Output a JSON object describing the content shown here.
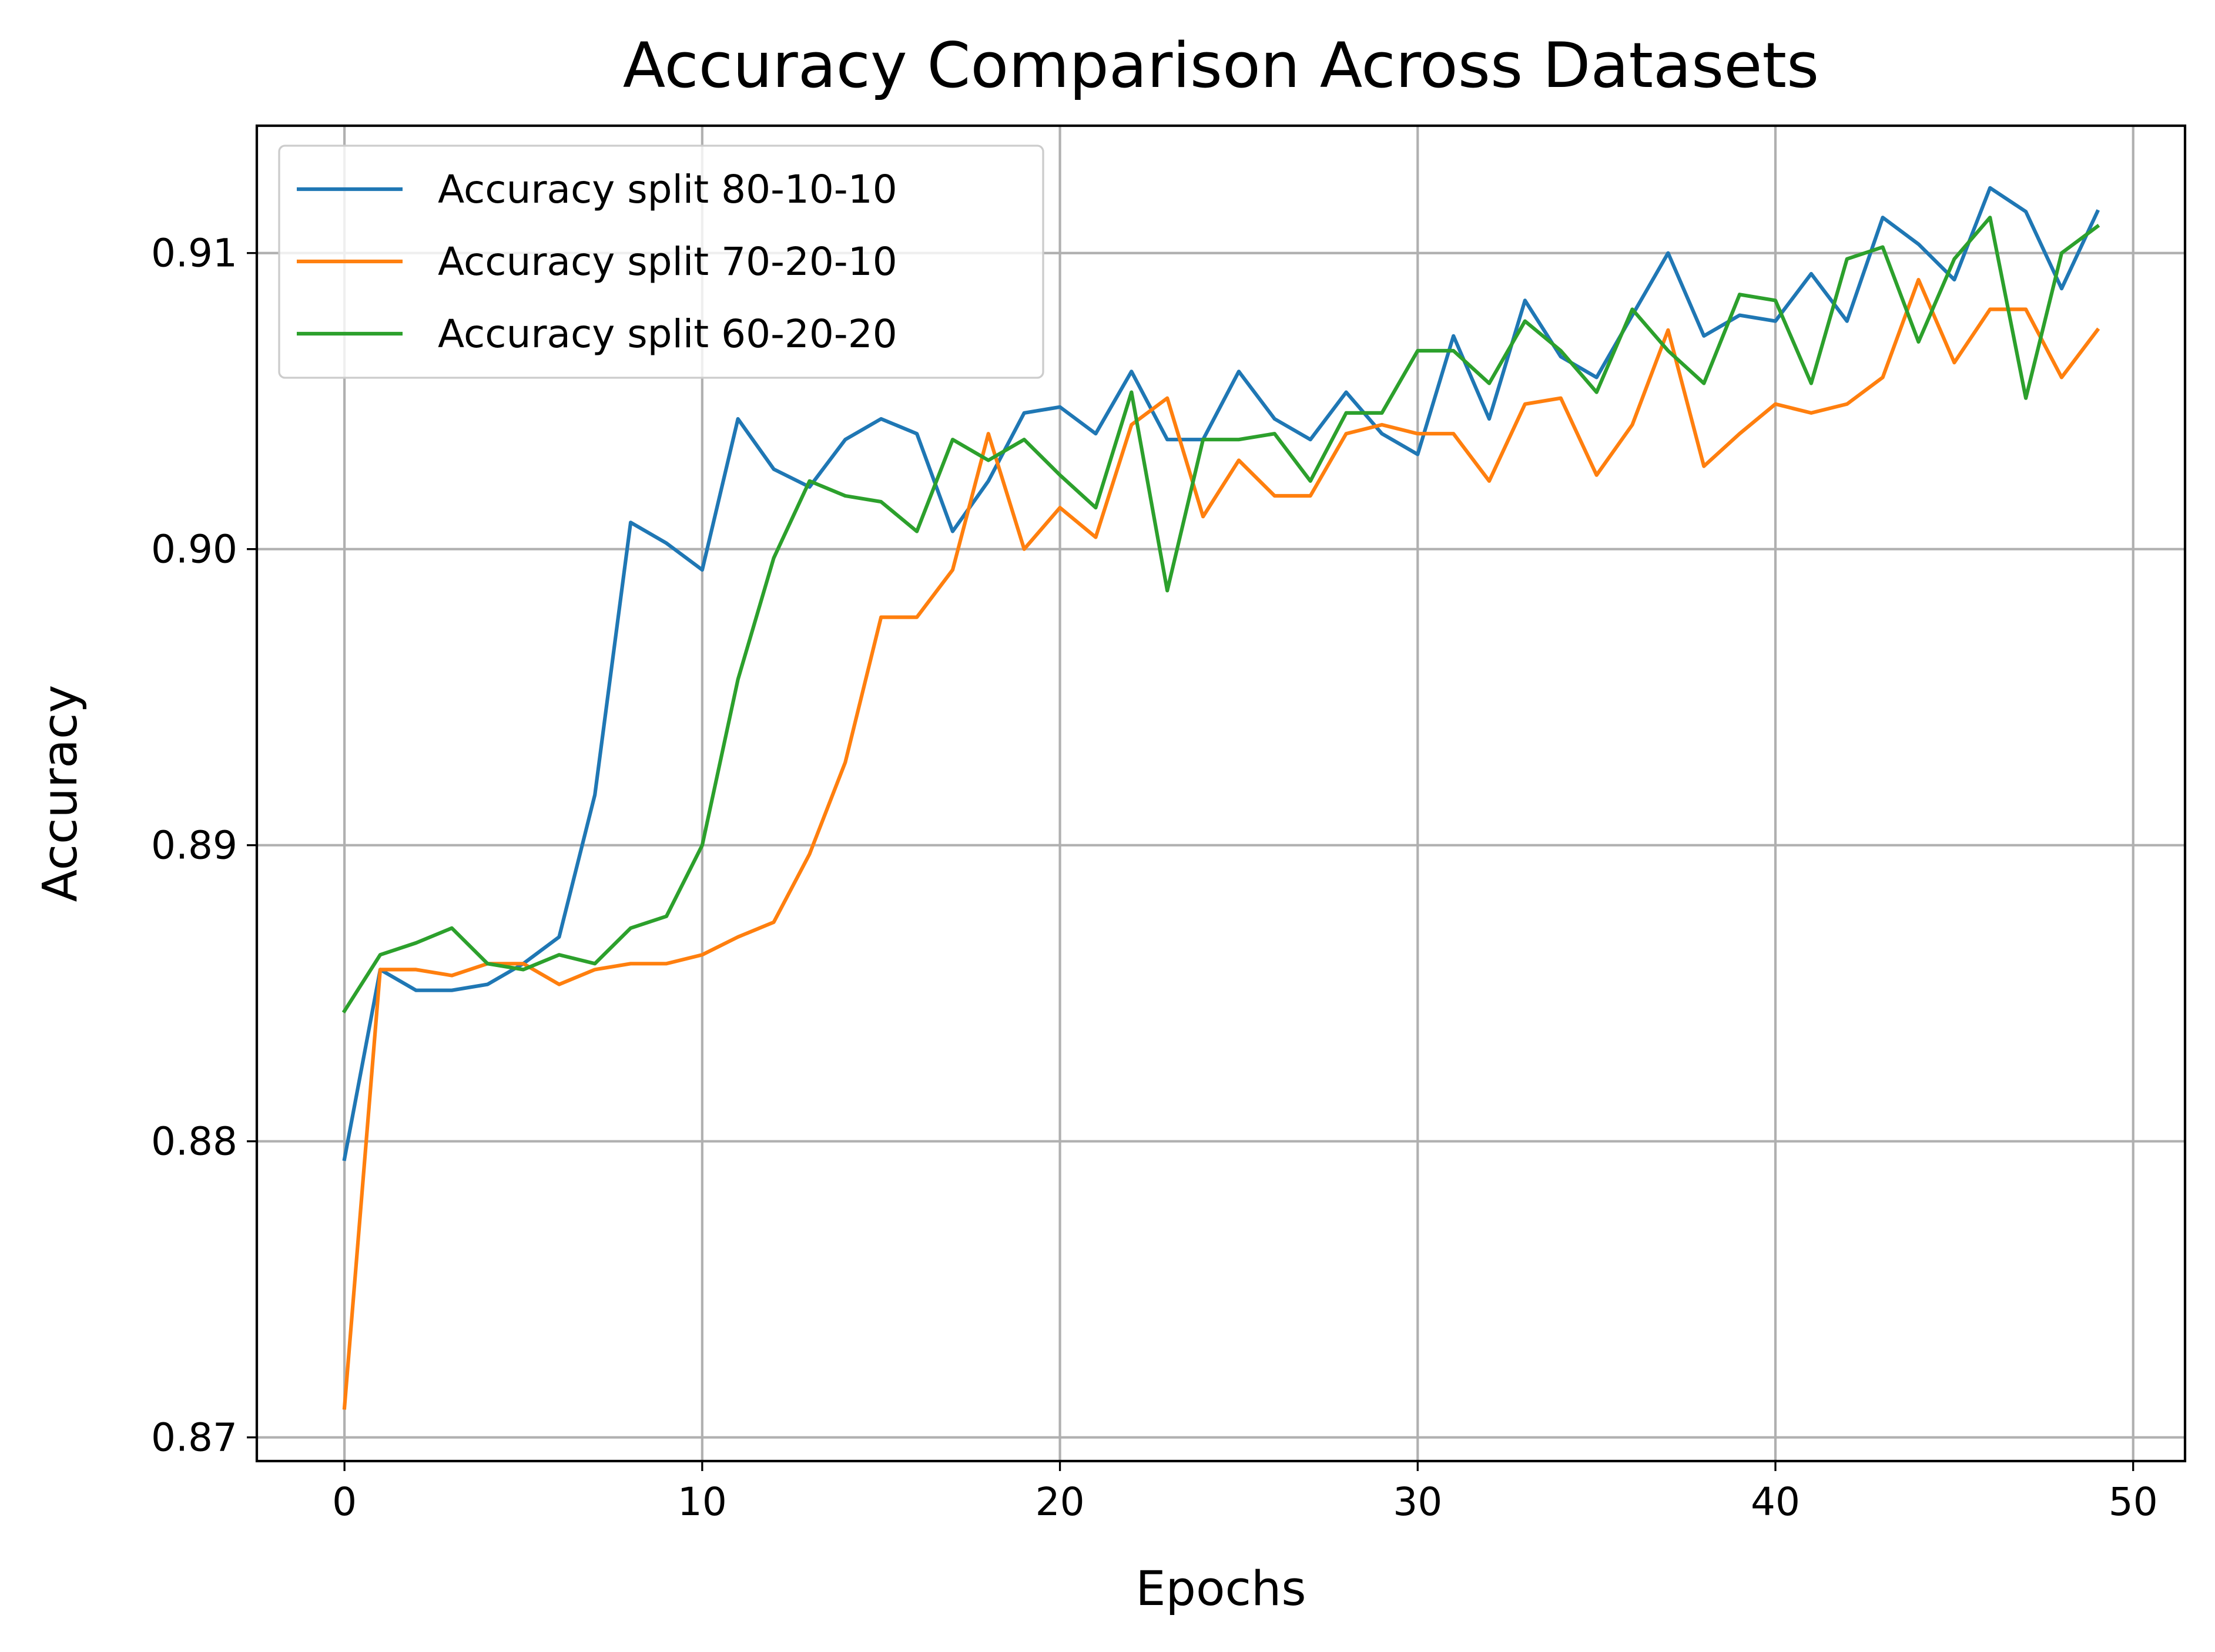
{
  "chart_data": {
    "type": "line",
    "title": "Accuracy Comparison Across Datasets",
    "xlabel": "Epochs",
    "ylabel": "Accuracy",
    "xlim": [
      -2.45,
      51.45
    ],
    "ylim": [
      0.8692,
      0.9143
    ],
    "xticks": [
      0,
      10,
      20,
      30,
      40,
      50
    ],
    "yticks": [
      0.87,
      0.88,
      0.89,
      0.9,
      0.91
    ],
    "ytick_labels": [
      "0.87",
      "0.88",
      "0.89",
      "0.90",
      "0.91"
    ],
    "xtick_labels": [
      "0",
      "10",
      "20",
      "30",
      "40",
      "50"
    ],
    "grid": true,
    "legend_position": "upper-left",
    "x": [
      0,
      1,
      2,
      3,
      4,
      5,
      6,
      7,
      8,
      9,
      10,
      11,
      12,
      13,
      14,
      15,
      16,
      17,
      18,
      19,
      20,
      21,
      22,
      23,
      24,
      25,
      26,
      27,
      28,
      29,
      30,
      31,
      32,
      33,
      34,
      35,
      36,
      37,
      38,
      39,
      40,
      41,
      42,
      43,
      44,
      45,
      46,
      47,
      48,
      49
    ],
    "series": [
      {
        "name": "Accuracy split 80-10-10",
        "color": "#1f77b4",
        "values": [
          0.8794,
          0.8858,
          0.8851,
          0.8851,
          0.8853,
          0.886,
          0.8869,
          0.8917,
          0.9009,
          0.9002,
          0.8993,
          0.9044,
          0.9027,
          0.9021,
          0.9037,
          0.9044,
          0.9039,
          0.9006,
          0.9023,
          0.9046,
          0.9048,
          0.9039,
          0.906,
          0.9037,
          0.9037,
          0.906,
          0.9044,
          0.9037,
          0.9053,
          0.9039,
          0.9032,
          0.9072,
          0.9044,
          0.9084,
          0.9065,
          0.9058,
          0.9079,
          0.91,
          0.9072,
          0.9079,
          0.9077,
          0.9093,
          0.9077,
          0.9112,
          0.9103,
          0.9091,
          0.9122,
          0.9114,
          0.9088,
          0.9114
        ]
      },
      {
        "name": "Accuracy split 70-20-10",
        "color": "#ff7f0e",
        "values": [
          0.871,
          0.8858,
          0.8858,
          0.8856,
          0.886,
          0.886,
          0.8853,
          0.8858,
          0.886,
          0.886,
          0.8863,
          0.8869,
          0.8874,
          0.8897,
          0.8928,
          0.8977,
          0.8977,
          0.8993,
          0.9039,
          0.9,
          0.9014,
          0.9004,
          0.9042,
          0.9051,
          0.9011,
          0.903,
          0.9018,
          0.9018,
          0.9039,
          0.9042,
          0.9039,
          0.9039,
          0.9023,
          0.9049,
          0.9051,
          0.9025,
          0.9042,
          0.9074,
          0.9028,
          0.9039,
          0.9049,
          0.9046,
          0.9049,
          0.9058,
          0.9091,
          0.9063,
          0.9081,
          0.9081,
          0.9058,
          0.9074
        ]
      },
      {
        "name": "Accuracy split 60-20-20",
        "color": "#2ca02c",
        "values": [
          0.8844,
          0.8863,
          0.8867,
          0.8872,
          0.886,
          0.8858,
          0.8863,
          0.886,
          0.8872,
          0.8876,
          0.89,
          0.8956,
          0.8997,
          0.9023,
          0.9018,
          0.9016,
          0.9006,
          0.9037,
          0.903,
          0.9037,
          0.9025,
          0.9014,
          0.9053,
          0.8986,
          0.9037,
          0.9037,
          0.9039,
          0.9023,
          0.9046,
          0.9046,
          0.9067,
          0.9067,
          0.9056,
          0.9077,
          0.9067,
          0.9053,
          0.9081,
          0.9067,
          0.9056,
          0.9086,
          0.9084,
          0.9056,
          0.9098,
          0.9102,
          0.907,
          0.9098,
          0.9112,
          0.9051,
          0.91,
          0.9109
        ]
      }
    ]
  }
}
